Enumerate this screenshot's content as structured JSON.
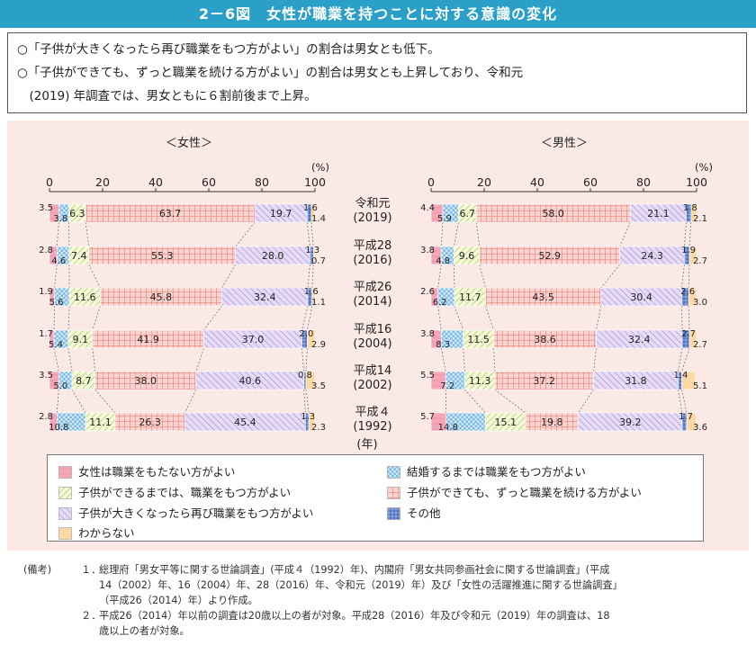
{
  "title": "2－6図　女性が職業を持つことに対する意識の変化",
  "summary": [
    "○「子供が大きくなったら再び職業をもつ方がよい」の割合は男女とも低下。",
    "○「子供ができても、ずっと職業を続ける方がよい」の割合は男女とも上昇しており、令和元",
    "　(2019) 年調査では、男女ともに６割前後まで上昇。"
  ],
  "colors": {
    "cat1": "#f4a7b7",
    "cat2": "#cfe9f7",
    "cat3": "#eef5c6",
    "cat4": "#f7c7c1",
    "cat5": "#dccdf0",
    "cat6": "#5b7fc9",
    "cat7": "#fbd8a6",
    "title_bg": "#2aa0c8",
    "chart_bg": "#fbe9e5"
  },
  "chart_data": [
    {
      "type": "bar",
      "stacked": true,
      "orientation": "horizontal",
      "title": "＜女性＞",
      "unit": "(%)",
      "xlim": [
        0,
        100
      ],
      "ticks": [
        "0",
        "20",
        "40",
        "60",
        "80",
        "100"
      ],
      "categories": [
        "令和元 (2019)",
        "平成28 (2016)",
        "平成26 (2014)",
        "平成16 (2004)",
        "平成14 (2002)",
        "平成４ (1992)"
      ],
      "series": [
        {
          "name": "女性は職業をもたない方がよい",
          "values": [
            3.5,
            2.8,
            1.9,
            1.7,
            3.5,
            2.8
          ]
        },
        {
          "name": "結婚するまでは職業をもつ方がよい",
          "values": [
            3.8,
            4.6,
            5.6,
            5.4,
            5.0,
            10.8
          ]
        },
        {
          "name": "子供ができるまでは、職業をもつ方がよい",
          "values": [
            6.3,
            7.4,
            11.6,
            9.1,
            8.7,
            11.1
          ]
        },
        {
          "name": "子供ができても、ずっと職業を続ける方がよい",
          "values": [
            63.7,
            55.3,
            45.8,
            41.9,
            38.0,
            26.3
          ]
        },
        {
          "name": "子供が大きくなったら再び職業をもつ方がよい",
          "values": [
            19.7,
            28.0,
            32.4,
            37.0,
            40.6,
            45.4
          ]
        },
        {
          "name": "その他",
          "values": [
            1.6,
            1.3,
            1.6,
            2.0,
            0.8,
            1.3
          ]
        },
        {
          "name": "わからない",
          "values": [
            1.4,
            0.7,
            1.1,
            2.9,
            3.5,
            2.3
          ]
        }
      ]
    },
    {
      "type": "bar",
      "stacked": true,
      "orientation": "horizontal",
      "title": "＜男性＞",
      "unit": "(%)",
      "xlim": [
        0,
        100
      ],
      "ticks": [
        "0",
        "20",
        "40",
        "60",
        "80",
        "100"
      ],
      "categories": [
        "令和元 (2019)",
        "平成28 (2016)",
        "平成26 (2014)",
        "平成16 (2004)",
        "平成14 (2002)",
        "平成４ (1992)"
      ],
      "series": [
        {
          "name": "女性は職業をもたない方がよい",
          "values": [
            4.4,
            3.8,
            2.6,
            3.8,
            5.5,
            5.7
          ]
        },
        {
          "name": "結婚するまでは職業をもつ方がよい",
          "values": [
            5.9,
            4.8,
            6.2,
            8.3,
            7.2,
            14.8
          ]
        },
        {
          "name": "子供ができるまでは、職業をもつ方がよい",
          "values": [
            6.7,
            9.6,
            11.7,
            11.5,
            11.3,
            15.1
          ]
        },
        {
          "name": "子供ができても、ずっと職業を続ける方がよい",
          "values": [
            58.0,
            52.9,
            43.5,
            38.6,
            37.2,
            19.8
          ]
        },
        {
          "name": "子供が大きくなったら再び職業をもつ方がよい",
          "values": [
            21.1,
            24.3,
            30.4,
            32.4,
            31.8,
            39.2
          ]
        },
        {
          "name": "その他",
          "values": [
            1.8,
            1.9,
            2.6,
            2.7,
            1.4,
            1.7
          ]
        },
        {
          "name": "わからない",
          "values": [
            2.1,
            2.7,
            3.0,
            2.7,
            5.1,
            3.6
          ]
        }
      ]
    }
  ],
  "year_labels": [
    [
      "令和元",
      "(2019)"
    ],
    [
      "平成28",
      "(2016)"
    ],
    [
      "平成26",
      "(2014)"
    ],
    [
      "平成16",
      "(2004)"
    ],
    [
      "平成14",
      "(2002)"
    ],
    [
      "平成４",
      "(1992)"
    ]
  ],
  "year_axis_label": "(年)",
  "legend": [
    {
      "label": "女性は職業をもたない方がよい",
      "key": "cat1"
    },
    {
      "label": "結婚するまでは職業をもつ方がよい",
      "key": "cat2"
    },
    {
      "label": "子供ができるまでは、職業をもつ方がよい",
      "key": "cat3"
    },
    {
      "label": "子供ができても、ずっと職業を続ける方がよい",
      "key": "cat4"
    },
    {
      "label": "子供が大きくなったら再び職業をもつ方がよい",
      "key": "cat5"
    },
    {
      "label": "その他",
      "key": "cat6"
    },
    {
      "label": "わからない",
      "key": "cat7"
    }
  ],
  "notes": {
    "head": "(備考)",
    "items": [
      {
        "num": "１．",
        "lines": [
          "総理府「男女平等に関する世論調査」(平成４（1992）年)、内閣府「男女共同参画社会に関する世論調査」(平成",
          "14（2002）年、16（2004）年、28（2016）年、令和元（2019）年）及び「女性の活躍推進に関する世論調査」",
          "（平成26（2014）年）より作成。"
        ]
      },
      {
        "num": "２．",
        "lines": [
          "平成26（2014）年以前の調査は20歳以上の者が対象。平成28（2016）年及び令和元（2019）年の調査は、18",
          "歳以上の者が対象。"
        ]
      }
    ]
  }
}
